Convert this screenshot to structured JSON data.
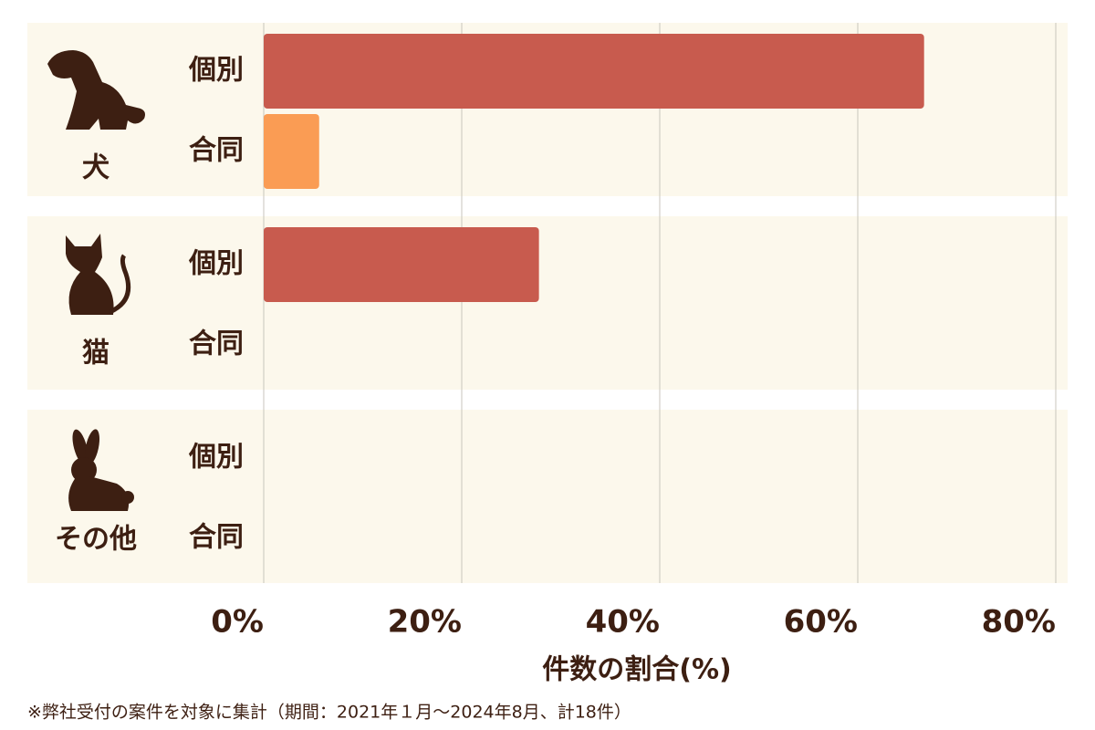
{
  "chart_data": {
    "type": "bar",
    "orientation": "horizontal",
    "categories": [
      "犬",
      "猫",
      "その他"
    ],
    "series": [
      {
        "name": "個別",
        "color": "#c85b4e",
        "values": [
          66.7,
          27.8,
          0
        ]
      },
      {
        "name": "合同",
        "color": "#fa9c54",
        "values": [
          5.6,
          0,
          0
        ]
      }
    ],
    "xlim": [
      0,
      80
    ],
    "xticks": [
      {
        "value": 0,
        "label": "0%"
      },
      {
        "value": 20,
        "label": "20%"
      },
      {
        "value": 40,
        "label": "40%"
      },
      {
        "value": 60,
        "label": "60%"
      },
      {
        "value": 80,
        "label": "80%"
      }
    ],
    "xlabel": "件数の割合(%)",
    "grid": true,
    "note": "※弊社受付の案件を対象に集計（期間：2021年１月～2024年8月、計18件）"
  }
}
